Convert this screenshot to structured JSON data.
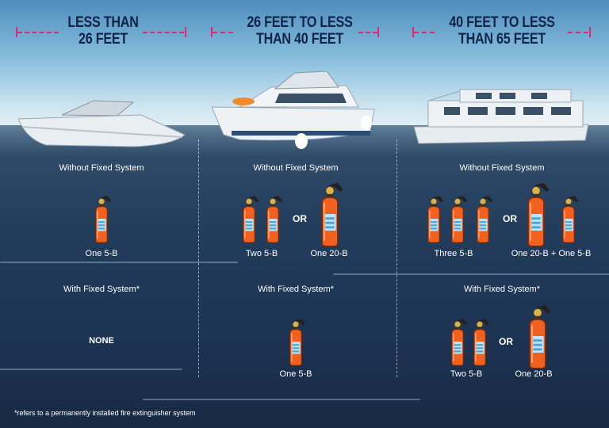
{
  "columns": [
    {
      "header_line1": "LESS THAN",
      "header_line2": "26 FEET",
      "without_label": "Without Fixed System",
      "without_options": [
        "One 5-B"
      ],
      "with_label": "With Fixed System*",
      "with_options": [
        "NONE"
      ]
    },
    {
      "header_line1": "26 FEET TO LESS",
      "header_line2": "THAN 40 FEET",
      "without_label": "Without Fixed System",
      "without_options": [
        "Two 5-B",
        "One 20-B"
      ],
      "with_label": "With Fixed System*",
      "with_options": [
        "One 5-B"
      ]
    },
    {
      "header_line1": "40 FEET TO LESS",
      "header_line2": "THAN 65 FEET",
      "without_label": "Without Fixed System",
      "without_options": [
        "Three 5-B",
        "One 20-B + One 5-B"
      ],
      "with_label": "With Fixed System*",
      "with_options": [
        "Two 5-B",
        "One 20-B"
      ]
    }
  ],
  "or_label": "OR",
  "footnote": "*refers to a permanently installed fire extinguisher system",
  "colors": {
    "header_text": "#0f2547",
    "range_marker": "#e0287a",
    "extinguisher": "#f0601e",
    "water": "#1d3352"
  },
  "icons": [
    "fire-extinguisher-icon",
    "speedboat-icon",
    "yacht-icon",
    "houseboat-icon"
  ]
}
